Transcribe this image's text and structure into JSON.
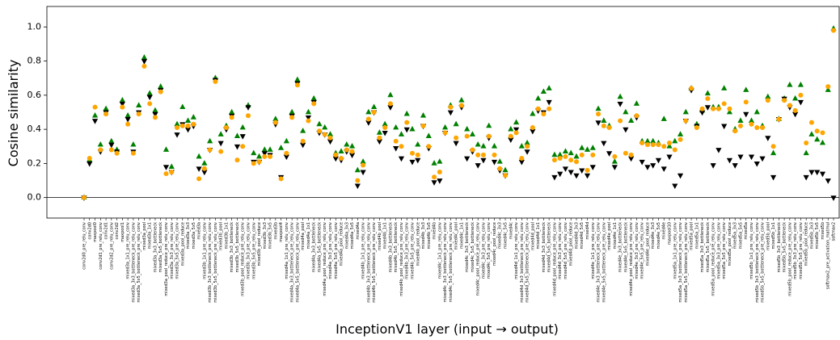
{
  "chart_data": {
    "type": "scatter",
    "ylabel": "Cosine similarity",
    "xlabel": "InceptionV1 layer (input → output)",
    "categories": [
      "conv2d0_pre_relu_conv",
      "conv2d0",
      "maxpool0",
      "conv2d1_pre_relu_conv",
      "conv2d1",
      "conv2d2_pre_relu_conv",
      "conv2d2",
      "maxpool1",
      "mixed3a_1x1_pre_relu_conv",
      "mixed3a_3x3_bottleneck_pre_relu_conv",
      "mixed3a_5x5_bottleneck_pre_relu_conv",
      "mixed3a_pool",
      "mixed3a_1x1",
      "mixed3a_3x3_bottleneck",
      "mixed3a_5x5_bottleneck",
      "mixed3a_pool_reduce_pre_relu_conv",
      "mixed3a_3x3_pre_relu_conv",
      "mixed3a_5x5_pre_relu_conv",
      "mixed3a_pool_reduce",
      "mixed3a_3x3",
      "mixed3a_5x5",
      "mixed3a",
      "mixed3b_1x1_pre_relu_conv",
      "mixed3b_3x3_bottleneck_pre_relu_conv",
      "mixed3b_5x5_bottleneck_pre_relu_conv",
      "mixed3b_pool",
      "mixed3b_1x1",
      "mixed3b_3x3_bottleneck",
      "mixed3b_5x5_bottleneck",
      "mixed3b_pool_reduce_pre_relu_conv",
      "mixed3b_3x3_pre_relu_conv",
      "mixed3b_5x5_pre_relu_conv",
      "mixed3b_pool_reduce",
      "mixed3b_3x3",
      "mixed3b_5x5",
      "mixed3b",
      "maxpool4",
      "mixed4a_1x1_pre_relu_conv",
      "mixed4a_3x3_bottleneck_pre_relu_conv",
      "mixed4a_5x5_bottleneck_pre_relu_conv",
      "mixed4a_pool",
      "mixed4a_1x1",
      "mixed4a_3x3_bottleneck",
      "mixed4a_5x5_bottleneck",
      "mixed4a_pool_reduce_pre_relu_conv",
      "mixed4a_3x3_pre_relu_conv",
      "mixed4a_5x5_pre_relu_conv",
      "mixed4a_pool_reduce",
      "mixed4a_3x3",
      "mixed4a_5x5",
      "mixed4a",
      "mixed4b_1x1_pre_relu_conv",
      "mixed4b_3x3_bottleneck_pre_relu_conv",
      "mixed4b_5x5_bottleneck_pre_relu_conv",
      "mixed4b_pool",
      "mixed4b_1x1",
      "mixed4b_3x3_bottleneck",
      "mixed4b_5x5_bottleneck",
      "mixed4b_pool_reduce_pre_relu_conv",
      "mixed4b_3x3_pre_relu_conv",
      "mixed4b_5x5_pre_relu_conv",
      "mixed4b_pool_reduce",
      "mixed4b_3x3",
      "mixed4b_5x5",
      "mixed4b",
      "mixed4c_1x1_pre_relu_conv",
      "mixed4c_3x3_bottleneck_pre_relu_conv",
      "mixed4c_5x5_bottleneck_pre_relu_conv",
      "mixed4c_pool",
      "mixed4c_1x1",
      "mixed4c_3x3_bottleneck",
      "mixed4c_5x5_bottleneck",
      "mixed4c_pool_reduce_pre_relu_conv",
      "mixed4c_3x3_pre_relu_conv",
      "mixed4c_5x5_pre_relu_conv",
      "mixed4c_pool_reduce",
      "mixed4c_3x3",
      "mixed4c_5x5",
      "mixed4c",
      "mixed4d_1x1_pre_relu_conv",
      "mixed4d_3x3_bottleneck_pre_relu_conv",
      "mixed4d_5x5_bottleneck_pre_relu_conv",
      "mixed4d_pool",
      "mixed4d_1x1",
      "mixed4d_3x3_bottleneck",
      "mixed4d_5x5_bottleneck",
      "mixed4d_pool_reduce_pre_relu_conv",
      "mixed4d_3x3_pre_relu_conv",
      "mixed4d_5x5_pre_relu_conv",
      "mixed4d_pool_reduce",
      "mixed4d_3x3",
      "mixed4d_5x5",
      "mixed4d",
      "mixed4e_1x1_pre_relu_conv",
      "mixed4e_3x3_bottleneck_pre_relu_conv",
      "mixed4e_5x5_bottleneck_pre_relu_conv",
      "mixed4e_pool",
      "mixed4e_1x1",
      "mixed4e_3x3_bottleneck",
      "mixed4e_5x5_bottleneck",
      "mixed4e_pool_reduce_pre_relu_conv",
      "mixed4e_3x3_pre_relu_conv",
      "mixed4e_5x5_pre_relu_conv",
      "mixed4e_pool_reduce",
      "mixed4e_3x3",
      "mixed4e_5x5",
      "mixed4e",
      "maxpool10",
      "mixed5a_1x1_pre_relu_conv",
      "mixed5a_3x3_bottleneck_pre_relu_conv",
      "mixed5a_5x5_bottleneck_pre_relu_conv",
      "mixed5a_pool",
      "mixed5a_1x1",
      "mixed5a_3x3_bottleneck",
      "mixed5a_5x5_bottleneck",
      "mixed5a_pool_reduce_pre_relu_conv",
      "mixed5a_3x3_pre_relu_conv",
      "mixed5a_5x5_pre_relu_conv",
      "mixed5a_pool_reduce",
      "mixed5a_3x3",
      "mixed5a_5x5",
      "mixed5a",
      "mixed5b_1x1_pre_relu_conv",
      "mixed5b_3x3_bottleneck_pre_relu_conv",
      "mixed5b_5x5_bottleneck_pre_relu_conv",
      "mixed5b_pool",
      "mixed5b_1x1",
      "mixed5b_3x3_bottleneck",
      "mixed5b_5x5_bottleneck",
      "mixed5b_pool_reduce_pre_relu_conv",
      "mixed5b_3x3_pre_relu_conv",
      "mixed5b_5x5_pre_relu_conv",
      "mixed5b_pool_reduce",
      "mixed5b_3x3",
      "mixed5b_5x5",
      "mixed5b",
      "softmax2_pre_activation_matmul",
      "softmax2"
    ],
    "series": [
      {
        "color": "#008000",
        "marker": "triangle-up",
        "values": [
          0,
          0.22,
          0.48,
          0.31,
          0.52,
          0.33,
          0.28,
          0.57,
          0.48,
          0.31,
          0.54,
          0.82,
          0.61,
          0.51,
          0.65,
          0.28,
          0.18,
          0.43,
          0.53,
          0.45,
          0.47,
          0.24,
          0.2,
          0.33,
          0.7,
          0.37,
          0.42,
          0.5,
          0.36,
          0.41,
          0.54,
          0.26,
          0.24,
          0.28,
          0.28,
          0.46,
          0.29,
          0.33,
          0.5,
          0.69,
          0.39,
          0.5,
          0.58,
          0.43,
          0.41,
          0.37,
          0.26,
          0.27,
          0.31,
          0.3,
          0.16,
          0.21,
          0.5,
          0.53,
          0.38,
          0.43,
          0.6,
          0.41,
          0.37,
          0.49,
          0.4,
          0.31,
          0.48,
          0.36,
          0.2,
          0.21,
          0.41,
          0.54,
          0.43,
          0.57,
          0.4,
          0.37,
          0.31,
          0.3,
          0.42,
          0.3,
          0.21,
          0.16,
          0.4,
          0.44,
          0.3,
          0.32,
          0.49,
          0.58,
          0.62,
          0.64,
          0.25,
          0.25,
          0.27,
          0.26,
          0.24,
          0.29,
          0.28,
          0.29,
          0.52,
          0.45,
          0.42,
          0.21,
          0.59,
          0.5,
          0.45,
          0.55,
          0.33,
          0.33,
          0.33,
          0.32,
          0.46,
          0.3,
          0.33,
          0.37,
          0.5,
          0.64,
          0.43,
          0.51,
          0.61,
          0.53,
          0.53,
          0.64,
          0.5,
          0.4,
          0.45,
          0.63,
          0.45,
          0.5,
          0.42,
          0.59,
          0.26,
          0.46,
          0.58,
          0.66,
          0.58,
          0.66,
          0.26,
          0.37,
          0.34,
          0.32,
          0.63,
          0.99
        ]
      },
      {
        "color": "#000000",
        "marker": "triangle-down",
        "values": [
          0,
          0.2,
          0.45,
          0.27,
          0.5,
          0.31,
          0.27,
          0.55,
          0.46,
          0.27,
          0.5,
          0.8,
          0.59,
          0.49,
          0.63,
          0.18,
          0.15,
          0.37,
          0.43,
          0.4,
          0.42,
          0.17,
          0.15,
          0.28,
          0.69,
          0.32,
          0.4,
          0.48,
          0.3,
          0.36,
          0.53,
          0.21,
          0.21,
          0.26,
          0.25,
          0.43,
          0.12,
          0.24,
          0.48,
          0.67,
          0.31,
          0.47,
          0.56,
          0.38,
          0.37,
          0.33,
          0.23,
          0.22,
          0.27,
          0.25,
          0.07,
          0.15,
          0.44,
          0.5,
          0.33,
          0.38,
          0.53,
          0.29,
          0.23,
          0.4,
          0.21,
          0.22,
          0.42,
          0.29,
          0.09,
          0.1,
          0.38,
          0.5,
          0.32,
          0.53,
          0.23,
          0.27,
          0.19,
          0.22,
          0.35,
          0.21,
          0.16,
          0.13,
          0.34,
          0.4,
          0.21,
          0.27,
          0.39,
          0.51,
          0.5,
          0.56,
          0.12,
          0.14,
          0.17,
          0.15,
          0.13,
          0.16,
          0.13,
          0.18,
          0.44,
          0.32,
          0.26,
          0.18,
          0.55,
          0.4,
          0.23,
          0.47,
          0.21,
          0.18,
          0.19,
          0.22,
          0.17,
          0.24,
          0.07,
          0.13,
          0.45,
          0.63,
          0.42,
          0.5,
          0.53,
          0.19,
          0.28,
          0.42,
          0.22,
          0.19,
          0.24,
          0.49,
          0.24,
          0.2,
          0.23,
          0.35,
          0.12,
          0.46,
          0.58,
          0.53,
          0.49,
          0.56,
          0.12,
          0.15,
          0.15,
          0.14,
          0.1,
          0.0
        ]
      },
      {
        "color": "#ffa500",
        "marker": "circle",
        "values": [
          0,
          0.23,
          0.53,
          0.28,
          0.49,
          0.28,
          0.26,
          0.53,
          0.43,
          0.26,
          0.49,
          0.77,
          0.55,
          0.47,
          0.62,
          0.14,
          0.15,
          0.41,
          0.42,
          0.42,
          0.43,
          0.11,
          0.17,
          0.28,
          0.68,
          0.27,
          0.41,
          0.47,
          0.22,
          0.3,
          0.48,
          0.2,
          0.21,
          0.24,
          0.24,
          0.44,
          0.11,
          0.26,
          0.47,
          0.66,
          0.33,
          0.45,
          0.55,
          0.39,
          0.37,
          0.35,
          0.25,
          0.23,
          0.28,
          0.27,
          0.1,
          0.19,
          0.46,
          0.5,
          0.35,
          0.41,
          0.55,
          0.33,
          0.3,
          0.44,
          0.26,
          0.25,
          0.42,
          0.3,
          0.12,
          0.15,
          0.38,
          0.53,
          0.35,
          0.54,
          0.36,
          0.28,
          0.25,
          0.25,
          0.36,
          0.25,
          0.17,
          0.13,
          0.36,
          0.38,
          0.23,
          0.3,
          0.41,
          0.52,
          0.49,
          0.52,
          0.22,
          0.23,
          0.24,
          0.22,
          0.21,
          0.25,
          0.16,
          0.25,
          0.49,
          0.42,
          0.41,
          0.24,
          0.45,
          0.26,
          0.25,
          0.48,
          0.32,
          0.31,
          0.31,
          0.31,
          0.3,
          0.32,
          0.28,
          0.34,
          0.45,
          0.64,
          0.41,
          0.52,
          0.58,
          0.52,
          0.52,
          0.55,
          0.52,
          0.39,
          0.42,
          0.56,
          0.43,
          0.41,
          0.41,
          0.57,
          0.3,
          0.46,
          0.57,
          0.54,
          0.51,
          0.6,
          0.32,
          0.44,
          0.39,
          0.38,
          0.65,
          0.98
        ]
      }
    ],
    "ylim": [
      -0.12,
      1.12
    ],
    "yticks": [
      {
        "value": 0,
        "label": "0.0"
      },
      {
        "value": 0.2,
        "label": "0.2"
      },
      {
        "value": 0.4,
        "label": "0.4"
      },
      {
        "value": 0.6,
        "label": "0.6"
      },
      {
        "value": 0.8,
        "label": "0.8"
      },
      {
        "value": 1,
        "label": "1.0"
      }
    ],
    "zero_line": true,
    "grid": false
  }
}
